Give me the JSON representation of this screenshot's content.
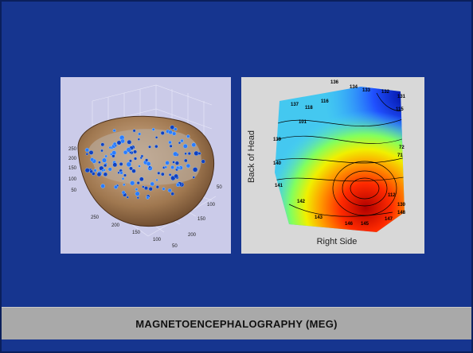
{
  "slide": {
    "caption": "MAGNETOENCEPHALOGRAPHY (MEG)",
    "figure_1": {
      "z_ticks": [
        "250",
        "200",
        "150",
        "100",
        "50"
      ],
      "x_ticks": [
        "250",
        "200",
        "150",
        "100",
        "50"
      ],
      "y_ticks": [
        "50",
        "100",
        "150",
        "200"
      ]
    },
    "figure_2": {
      "y_label": "Back of Head",
      "x_label": "Right Side",
      "contour_labels": [
        "136",
        "134",
        "133",
        "132",
        "131",
        "137",
        "118",
        "116",
        "115",
        "101",
        "72",
        "71",
        "112",
        "130",
        "148",
        "147",
        "146",
        "145",
        "143",
        "142",
        "141",
        "140",
        "139"
      ]
    }
  }
}
